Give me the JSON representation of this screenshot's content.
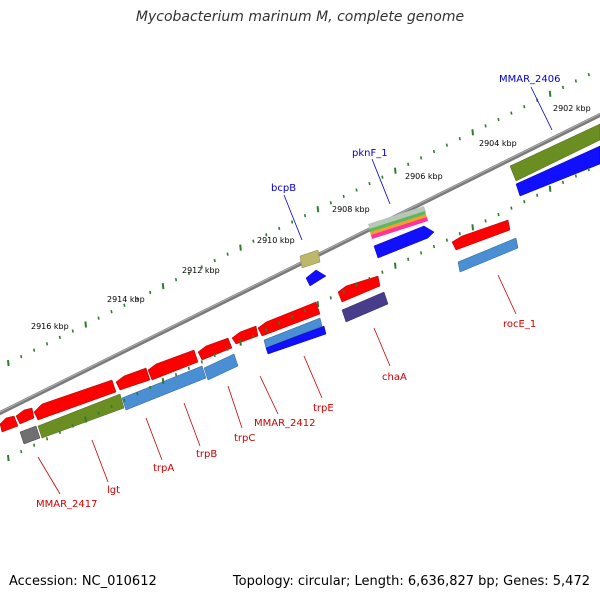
{
  "title": "Mycobacterium marinum M, complete genome",
  "footer": {
    "accession": "Accession: NC_010612",
    "summary": "Topology: circular; Length: 6,636,827 bp; Genes: 5,472"
  },
  "colors": {
    "backbone": "#8c8c8c",
    "tick": "#2e7d2e",
    "gene_red": "#ff0000",
    "cds_blue": "#1010ff",
    "steel_blue": "#4a8fd4",
    "olive": "#6b8e23",
    "khaki": "#bdb76b",
    "slate": "#483d8b",
    "gray": "#808080",
    "label_forward": "#0000cc",
    "label_reverse": "#cc0000"
  },
  "ticks": [
    {
      "label": "2902 kbp"
    },
    {
      "label": "2904 kbp"
    },
    {
      "label": "2906 kbp"
    },
    {
      "label": "2908 kbp"
    },
    {
      "label": "2910 kbp"
    },
    {
      "label": "2912 kbp"
    },
    {
      "label": "2914 kbp"
    },
    {
      "label": "2916 kbp"
    }
  ],
  "gene_labels": [
    {
      "text": "MMAR_2406",
      "strand": "forward"
    },
    {
      "text": "pknF_1",
      "strand": "forward"
    },
    {
      "text": "bcpB",
      "strand": "forward"
    },
    {
      "text": "rocE_1",
      "strand": "reverse"
    },
    {
      "text": "chaA",
      "strand": "reverse"
    },
    {
      "text": "trpE",
      "strand": "reverse"
    },
    {
      "text": "MMAR_2412",
      "strand": "reverse"
    },
    {
      "text": "trpC",
      "strand": "reverse"
    },
    {
      "text": "trpB",
      "strand": "reverse"
    },
    {
      "text": "trpA",
      "strand": "reverse"
    },
    {
      "text": "lgt",
      "strand": "reverse"
    },
    {
      "text": "MMAR_2417",
      "strand": "reverse"
    }
  ]
}
